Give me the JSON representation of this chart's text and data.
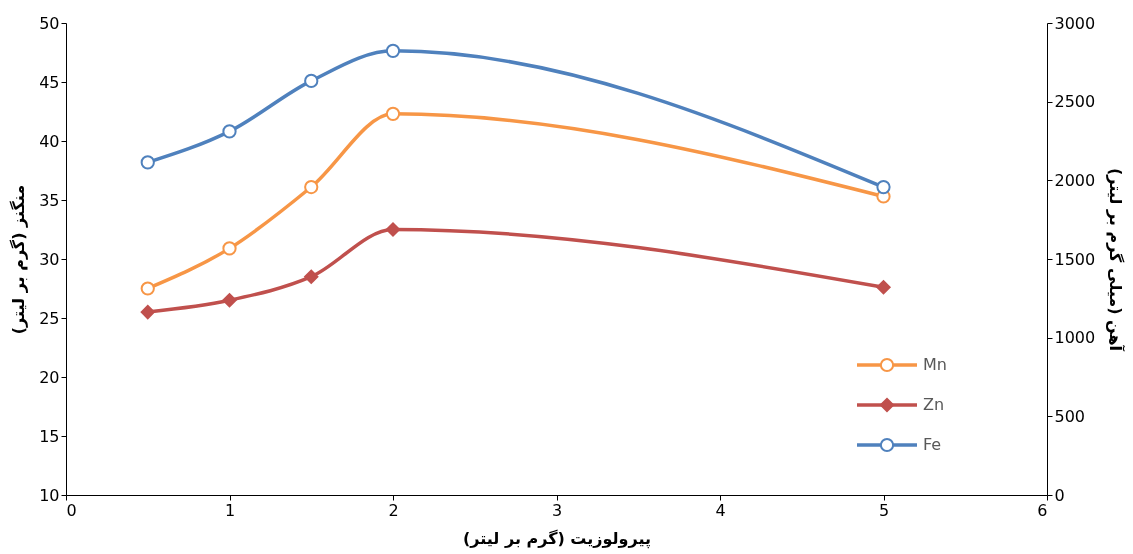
{
  "chart_data": {
    "type": "line",
    "xlabel": "پیرولوزیت (گرم بر لیتر)",
    "ylabel": "منگنز (گرم بر لیتر)",
    "y2label": "آهن (میلی گرم بر لیتر)",
    "x": [
      0.5,
      1,
      1.5,
      2,
      5
    ],
    "series": [
      {
        "name": "Mn",
        "color": "#f79646",
        "marker": "circle",
        "values": [
          27.5,
          30.9,
          36.1,
          42.3,
          35.3
        ]
      },
      {
        "name": "Zn",
        "color": "#c0504d",
        "marker": "diamond",
        "values": [
          25.5,
          26.5,
          28.5,
          32.5,
          27.6
        ]
      },
      {
        "name": "Fe",
        "color": "#4f81bd",
        "marker": "circle",
        "axis": "y2",
        "values": [
          2114,
          2311,
          2632,
          2823,
          1957
        ]
      }
    ],
    "xlim": [
      0,
      6
    ],
    "xticks": [
      0,
      1,
      2,
      3,
      4,
      5,
      6
    ],
    "ylim": [
      10,
      50
    ],
    "yticks": [
      10,
      15,
      20,
      25,
      30,
      35,
      40,
      45,
      50
    ],
    "y2lim": [
      0,
      3000
    ],
    "y2ticks": [
      0,
      500,
      1000,
      1500,
      2000,
      2500,
      3000
    ],
    "grid": false,
    "legend": "bottom right",
    "line_style": "solid"
  }
}
